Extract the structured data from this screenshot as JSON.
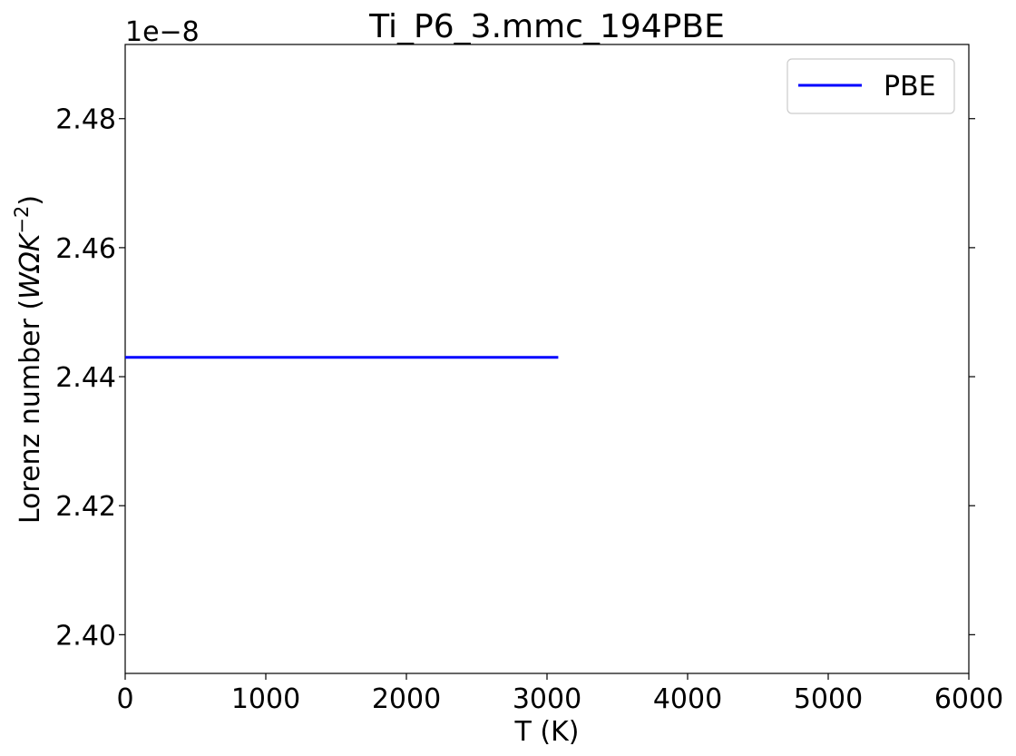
{
  "chart_data": {
    "type": "line",
    "title": "Ti_P6_3.mmc_194PBE",
    "xlabel": "T (K)",
    "ylabel_text": "Lorenz number (",
    "ylabel_unit": "WΩK",
    "ylabel_exp": "−2",
    "ylabel_close": ")",
    "y_offset_label": "1e−8",
    "xlim": [
      0,
      6000
    ],
    "ylim": [
      2.394,
      2.4915
    ],
    "x_ticks": [
      0,
      1000,
      2000,
      3000,
      4000,
      5000,
      6000
    ],
    "x_tick_labels": [
      "0",
      "1000",
      "2000",
      "3000",
      "4000",
      "5000",
      "6000"
    ],
    "y_ticks": [
      2.4,
      2.42,
      2.44,
      2.46,
      2.48
    ],
    "y_tick_labels": [
      "2.40",
      "2.42",
      "2.44",
      "2.46",
      "2.48"
    ],
    "grid": false,
    "legend_position": "top-right",
    "series": [
      {
        "name": "PBE",
        "color": "#0000ff",
        "x": [
          0,
          3080
        ],
        "y": [
          2.443,
          2.443
        ]
      }
    ]
  }
}
